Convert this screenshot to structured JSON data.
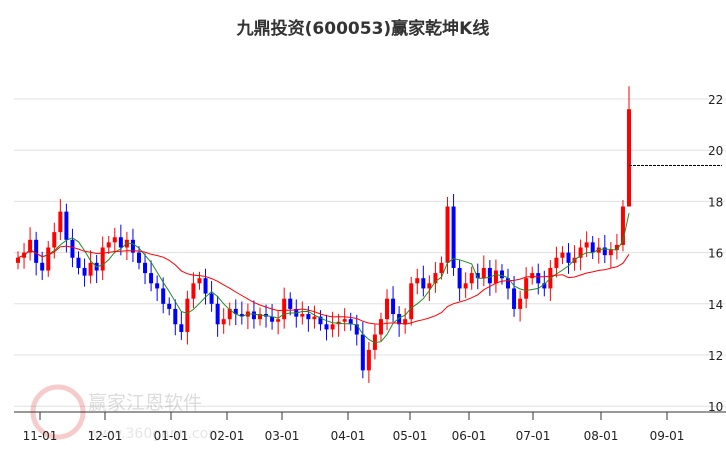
{
  "chart_data": {
    "type": "candlestick",
    "title": "九鼎投资(600053)赢家乾坤K线",
    "xlabel": "",
    "ylabel": "",
    "ylim": [
      10,
      22.7
    ],
    "yticks": [
      "10",
      "12",
      "14",
      "16",
      "18",
      "20",
      "22"
    ],
    "xticks": [
      "11-01",
      "12-01",
      "01-01",
      "02-01",
      "03-01",
      "04-01",
      "05-01",
      "06-01",
      "07-01",
      "08-01",
      "09-01"
    ],
    "grid": true,
    "up_color": "#ff0000",
    "down_color": "#0000ff",
    "ma_short_color": "#228b22",
    "ma_long_color": "#ff0000",
    "first_open": 15.6,
    "close": [
      15.8,
      16.0,
      16.5,
      15.6,
      15.3,
      16.2,
      16.8,
      17.6,
      16.5,
      15.8,
      15.4,
      15.1,
      15.6,
      15.3,
      16.2,
      16.4,
      16.6,
      16.2,
      16.5,
      16.0,
      15.6,
      15.2,
      14.8,
      14.6,
      14.0,
      13.8,
      13.2,
      12.9,
      14.2,
      14.8,
      15.0,
      14.4,
      14.0,
      13.2,
      13.4,
      13.8,
      13.6,
      13.5,
      13.7,
      13.4,
      13.6,
      13.5,
      13.3,
      13.4,
      14.2,
      13.8,
      13.5,
      13.6,
      13.4,
      13.5,
      13.2,
      13.0,
      13.2,
      13.3,
      13.4,
      13.2,
      12.8,
      11.4,
      12.2,
      12.8,
      13.4,
      14.2,
      13.6,
      13.2,
      13.4,
      14.8,
      15.0,
      14.6,
      14.8,
      15.2,
      15.6,
      17.8,
      15.4,
      14.6,
      14.8,
      15.2,
      15.0,
      15.4,
      14.8,
      15.3,
      15.0,
      14.6,
      13.8,
      14.2,
      15.0,
      15.2,
      14.8,
      14.6,
      15.4,
      15.8,
      16.0,
      15.6,
      15.8,
      16.2,
      16.4,
      16.0,
      16.2,
      15.9,
      16.1,
      16.3,
      17.8,
      21.6
    ],
    "last_candle_range": [
      19.4,
      22.5
    ],
    "reference_line": 19.4,
    "watermark": {
      "name": "赢家江恩软件",
      "url": "www.360gann.com",
      "seal": "江赢恩家"
    }
  }
}
